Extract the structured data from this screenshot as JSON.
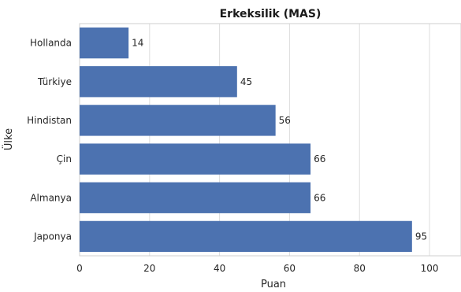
{
  "chart_data": {
    "type": "bar",
    "orientation": "horizontal",
    "title": "Erkeksilik (MAS)",
    "xlabel": "Puan",
    "ylabel": "Ülke",
    "categories": [
      "Hollanda",
      "Türkiye",
      "Hindistan",
      "Çin",
      "Almanya",
      "Japonya"
    ],
    "values": [
      14,
      45,
      56,
      66,
      66,
      95
    ],
    "xlim": [
      0,
      109
    ],
    "xticks": [
      0,
      20,
      40,
      60,
      80,
      100
    ],
    "grid": true,
    "data_labels": true,
    "bar_color": "#4c72b0"
  }
}
